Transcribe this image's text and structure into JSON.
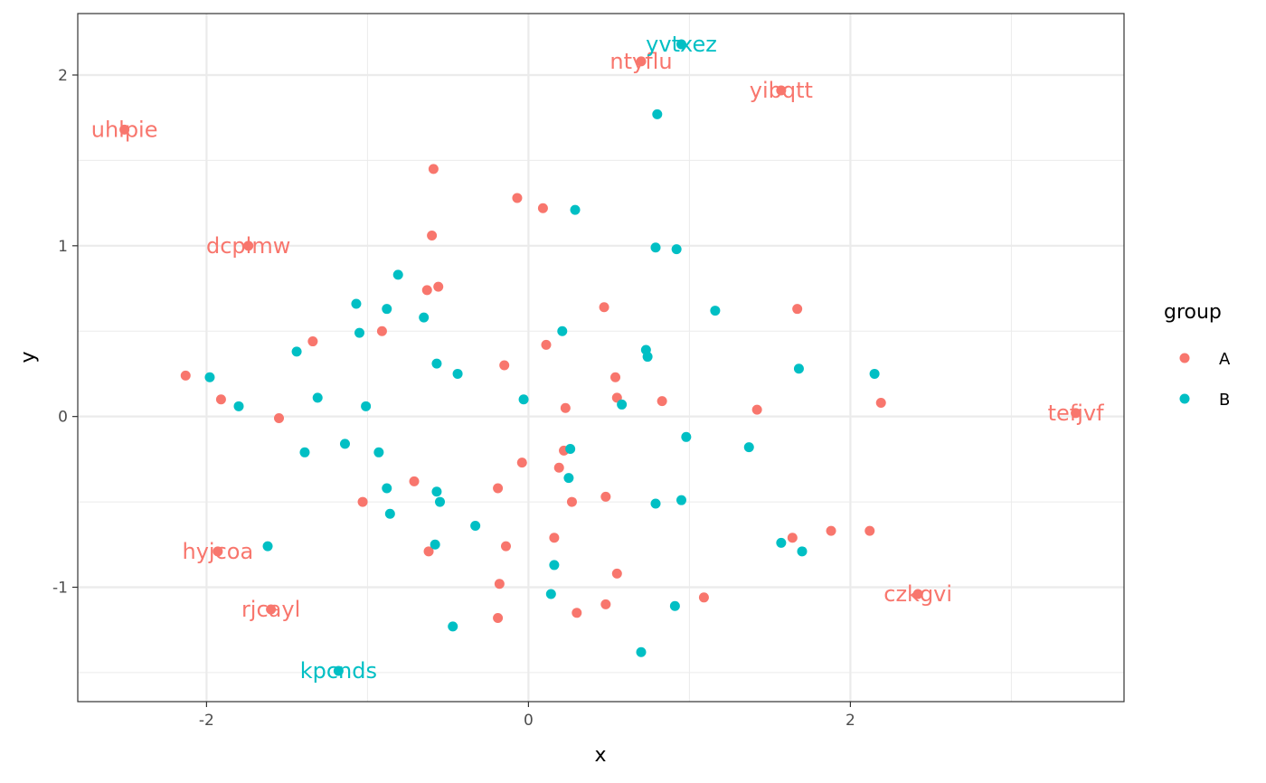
{
  "chart_data": {
    "type": "scatter",
    "title": "",
    "xlabel": "x",
    "ylabel": "y",
    "xlim": [
      -2.8,
      3.7
    ],
    "ylim": [
      -1.67,
      2.36
    ],
    "x_ticks": [
      -2,
      0,
      2
    ],
    "x_tick_labels": [
      "-2",
      "0",
      "2"
    ],
    "y_ticks": [
      -1,
      0,
      1,
      2
    ],
    "y_tick_labels": [
      "-1",
      "0",
      "1",
      "2"
    ],
    "grid": true,
    "legend": {
      "title": "group",
      "placement": "right"
    },
    "colors": {
      "A": "#F8766D",
      "B": "#00BFC4"
    },
    "series": [
      {
        "name": "A",
        "points": [
          [
            -2.51,
            1.68
          ],
          [
            -1.74,
            1.0
          ],
          [
            0.7,
            2.08
          ],
          [
            1.57,
            1.91
          ],
          [
            -0.59,
            1.45
          ],
          [
            -0.07,
            1.28
          ],
          [
            0.09,
            1.22
          ],
          [
            -0.6,
            1.06
          ],
          [
            -0.63,
            0.74
          ],
          [
            -0.56,
            0.76
          ],
          [
            0.47,
            0.64
          ],
          [
            1.67,
            0.63
          ],
          [
            -1.34,
            0.44
          ],
          [
            -0.91,
            0.5
          ],
          [
            0.11,
            0.42
          ],
          [
            -2.13,
            0.24
          ],
          [
            -0.15,
            0.3
          ],
          [
            0.54,
            0.23
          ],
          [
            -1.91,
            0.1
          ],
          [
            0.55,
            0.11
          ],
          [
            0.83,
            0.09
          ],
          [
            2.19,
            0.08
          ],
          [
            0.23,
            0.05
          ],
          [
            1.42,
            0.04
          ],
          [
            -1.55,
            -0.01
          ],
          [
            3.4,
            0.02
          ],
          [
            0.22,
            -0.2
          ],
          [
            -0.04,
            -0.27
          ],
          [
            0.19,
            -0.3
          ],
          [
            -0.71,
            -0.38
          ],
          [
            -0.19,
            -0.42
          ],
          [
            -1.03,
            -0.5
          ],
          [
            0.48,
            -0.47
          ],
          [
            0.27,
            -0.5
          ],
          [
            1.88,
            -0.67
          ],
          [
            2.12,
            -0.67
          ],
          [
            1.64,
            -0.71
          ],
          [
            -1.93,
            -0.79
          ],
          [
            0.16,
            -0.71
          ],
          [
            -0.14,
            -0.76
          ],
          [
            -0.62,
            -0.79
          ],
          [
            0.55,
            -0.92
          ],
          [
            -0.18,
            -0.98
          ],
          [
            -1.6,
            -1.13
          ],
          [
            0.48,
            -1.1
          ],
          [
            1.09,
            -1.06
          ],
          [
            0.3,
            -1.15
          ],
          [
            -0.19,
            -1.18
          ],
          [
            2.42,
            -1.04
          ]
        ],
        "labels": [
          {
            "text": "uhlpie",
            "x": -2.51,
            "y": 1.68
          },
          {
            "text": "dcplmw",
            "x": -1.74,
            "y": 1.0
          },
          {
            "text": "ntyflu",
            "x": 0.7,
            "y": 2.08
          },
          {
            "text": "yibqtt",
            "x": 1.57,
            "y": 1.91
          },
          {
            "text": "tefjvf",
            "x": 3.4,
            "y": 0.02
          },
          {
            "text": "hyjcoa",
            "x": -1.93,
            "y": -0.79
          },
          {
            "text": "rjcayl",
            "x": -1.6,
            "y": -1.13
          },
          {
            "text": "czkgvi",
            "x": 2.42,
            "y": -1.04
          }
        ]
      },
      {
        "name": "B",
        "points": [
          [
            0.95,
            2.18
          ],
          [
            0.8,
            1.77
          ],
          [
            0.29,
            1.21
          ],
          [
            0.79,
            0.99
          ],
          [
            0.92,
            0.98
          ],
          [
            -0.81,
            0.83
          ],
          [
            -1.07,
            0.66
          ],
          [
            -0.88,
            0.63
          ],
          [
            -0.65,
            0.58
          ],
          [
            1.16,
            0.62
          ],
          [
            0.21,
            0.5
          ],
          [
            -1.05,
            0.49
          ],
          [
            0.73,
            0.39
          ],
          [
            0.74,
            0.35
          ],
          [
            -1.44,
            0.38
          ],
          [
            -0.57,
            0.31
          ],
          [
            -0.44,
            0.25
          ],
          [
            1.68,
            0.28
          ],
          [
            2.15,
            0.25
          ],
          [
            -1.98,
            0.23
          ],
          [
            -1.31,
            0.11
          ],
          [
            -0.03,
            0.1
          ],
          [
            0.58,
            0.07
          ],
          [
            -1.8,
            0.06
          ],
          [
            -1.01,
            0.06
          ],
          [
            0.98,
            -0.12
          ],
          [
            1.37,
            -0.18
          ],
          [
            -1.14,
            -0.16
          ],
          [
            0.26,
            -0.19
          ],
          [
            -1.39,
            -0.21
          ],
          [
            -0.93,
            -0.21
          ],
          [
            0.25,
            -0.36
          ],
          [
            -0.88,
            -0.42
          ],
          [
            -0.57,
            -0.44
          ],
          [
            -0.55,
            -0.5
          ],
          [
            0.95,
            -0.49
          ],
          [
            0.79,
            -0.51
          ],
          [
            -0.86,
            -0.57
          ],
          [
            -0.33,
            -0.64
          ],
          [
            1.57,
            -0.74
          ],
          [
            1.7,
            -0.79
          ],
          [
            -1.62,
            -0.76
          ],
          [
            -0.58,
            -0.75
          ],
          [
            0.16,
            -0.87
          ],
          [
            0.14,
            -1.04
          ],
          [
            0.91,
            -1.11
          ],
          [
            -0.47,
            -1.23
          ],
          [
            0.7,
            -1.38
          ],
          [
            -1.18,
            -1.49
          ]
        ],
        "labels": [
          {
            "text": "yvtxez",
            "x": 0.95,
            "y": 2.18
          },
          {
            "text": "kpcnds",
            "x": -1.18,
            "y": -1.49
          }
        ]
      }
    ]
  }
}
